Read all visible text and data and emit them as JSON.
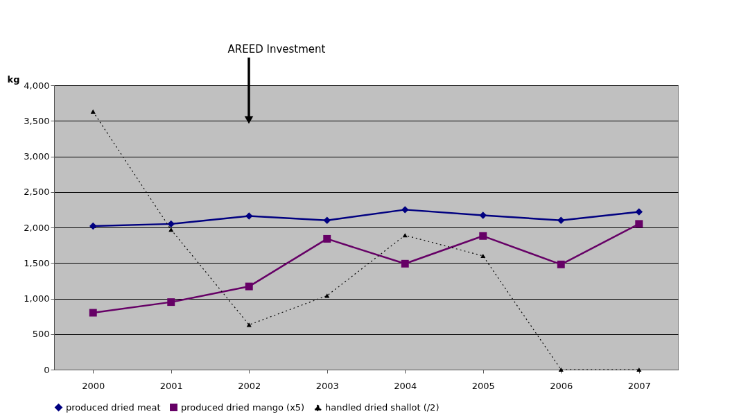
{
  "chart_data": {
    "type": "line",
    "ylabel": "kg",
    "categories": [
      "2000",
      "2001",
      "2002",
      "2003",
      "2004",
      "2005",
      "2006",
      "2007"
    ],
    "ylim": [
      0,
      4000
    ],
    "yticks": [
      {
        "value": 0,
        "label": "0"
      },
      {
        "value": 500,
        "label": "500"
      },
      {
        "value": 1000,
        "label": "1,000"
      },
      {
        "value": 1500,
        "label": "1,500"
      },
      {
        "value": 2000,
        "label": "2,000"
      },
      {
        "value": 2500,
        "label": "2,500"
      },
      {
        "value": 3000,
        "label": "3,000"
      },
      {
        "value": 3500,
        "label": "3,500"
      },
      {
        "value": 4000,
        "label": "4,000"
      }
    ],
    "grid": "y",
    "legend": "bottom",
    "annotations": [
      "AREED Investment"
    ],
    "series": [
      {
        "name": "produced dried meat",
        "color": "#000080",
        "marker": "diamond",
        "line_style": "solid",
        "values": [
          2020,
          2050,
          2160,
          2100,
          2250,
          2170,
          2100,
          2220
        ]
      },
      {
        "name": "produced dried mango (x5)",
        "color": "#660066",
        "marker": "square",
        "line_style": "solid",
        "values": [
          800,
          950,
          1170,
          1840,
          1490,
          1880,
          1480,
          2050
        ]
      },
      {
        "name": "handled dried shallot (/2)",
        "color": "#000000",
        "marker": "triangle",
        "line_style": "dotted",
        "values": [
          3630,
          1970,
          630,
          1040,
          1890,
          1600,
          0,
          0
        ]
      }
    ]
  }
}
